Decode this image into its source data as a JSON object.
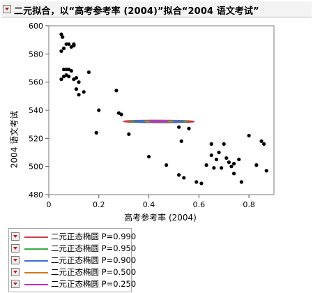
{
  "title": "二元拟合，以“高考参考率 (2004)”拟合“2004 语文考试”",
  "chart_data": {
    "type": "scatter",
    "xlabel": "高考参考率 (2004)",
    "ylabel": "2004 语文考试",
    "xlim": [
      0,
      0.9
    ],
    "ylim": [
      480,
      600
    ],
    "xticks": [
      0,
      0.2,
      0.4,
      0.6,
      0.8
    ],
    "xticklabels": [
      "0",
      "0.2",
      "0.4",
      "0.6",
      "0.8"
    ],
    "yticks": [
      480,
      500,
      520,
      540,
      560,
      580,
      600
    ],
    "yticklabels": [
      "480",
      "500",
      "520",
      "540",
      "560",
      "580",
      "600"
    ],
    "grid": false,
    "points": [
      [
        0.05,
        594
      ],
      [
        0.055,
        592
      ],
      [
        0.05,
        582
      ],
      [
        0.06,
        584
      ],
      [
        0.07,
        587
      ],
      [
        0.08,
        587
      ],
      [
        0.09,
        585
      ],
      [
        0.1,
        587
      ],
      [
        0.1,
        586
      ],
      [
        0.06,
        569
      ],
      [
        0.07,
        569
      ],
      [
        0.08,
        569
      ],
      [
        0.09,
        568
      ],
      [
        0.06,
        564
      ],
      [
        0.07,
        565
      ],
      [
        0.08,
        564
      ],
      [
        0.05,
        562
      ],
      [
        0.1,
        562
      ],
      [
        0.11,
        563
      ],
      [
        0.12,
        560
      ],
      [
        0.11,
        555
      ],
      [
        0.14,
        553
      ],
      [
        0.16,
        567
      ],
      [
        0.12,
        551
      ],
      [
        0.2,
        540
      ],
      [
        0.19,
        524
      ],
      [
        0.27,
        554
      ],
      [
        0.28,
        538
      ],
      [
        0.29,
        537
      ],
      [
        0.32,
        523
      ],
      [
        0.4,
        507
      ],
      [
        0.47,
        501
      ],
      [
        0.52,
        528
      ],
      [
        0.53,
        518
      ],
      [
        0.56,
        527
      ],
      [
        0.52,
        494
      ],
      [
        0.54,
        492
      ],
      [
        0.59,
        489
      ],
      [
        0.61,
        488
      ],
      [
        0.63,
        501
      ],
      [
        0.65,
        508
      ],
      [
        0.65,
        516
      ],
      [
        0.66,
        499
      ],
      [
        0.67,
        505
      ],
      [
        0.68,
        510
      ],
      [
        0.69,
        499
      ],
      [
        0.7,
        516
      ],
      [
        0.71,
        506
      ],
      [
        0.72,
        503
      ],
      [
        0.73,
        500
      ],
      [
        0.74,
        502
      ],
      [
        0.74,
        495
      ],
      [
        0.76,
        505
      ],
      [
        0.77,
        489
      ],
      [
        0.8,
        522
      ],
      [
        0.83,
        501
      ],
      [
        0.85,
        518
      ],
      [
        0.86,
        516
      ],
      [
        0.87,
        497
      ]
    ],
    "ellipses": {
      "center": [
        0.44,
        532
      ],
      "major_axis_slope": -80,
      "sigma_major": 0.243,
      "sigma_minor": 0.046
    }
  },
  "legend": [
    {
      "label": "二元正态椭圆 P=0.990",
      "p": 0.99,
      "color": "#c8404a"
    },
    {
      "label": "二元正态椭圆 P=0.950",
      "p": 0.95,
      "color": "#3aa842"
    },
    {
      "label": "二元正态椭圆 P=0.900",
      "p": 0.9,
      "color": "#3a70d0"
    },
    {
      "label": "二元正态椭圆 P=0.500",
      "p": 0.5,
      "color": "#d07820"
    },
    {
      "label": "二元正态椭圆 P=0.250",
      "p": 0.25,
      "color": "#c828c8"
    }
  ]
}
